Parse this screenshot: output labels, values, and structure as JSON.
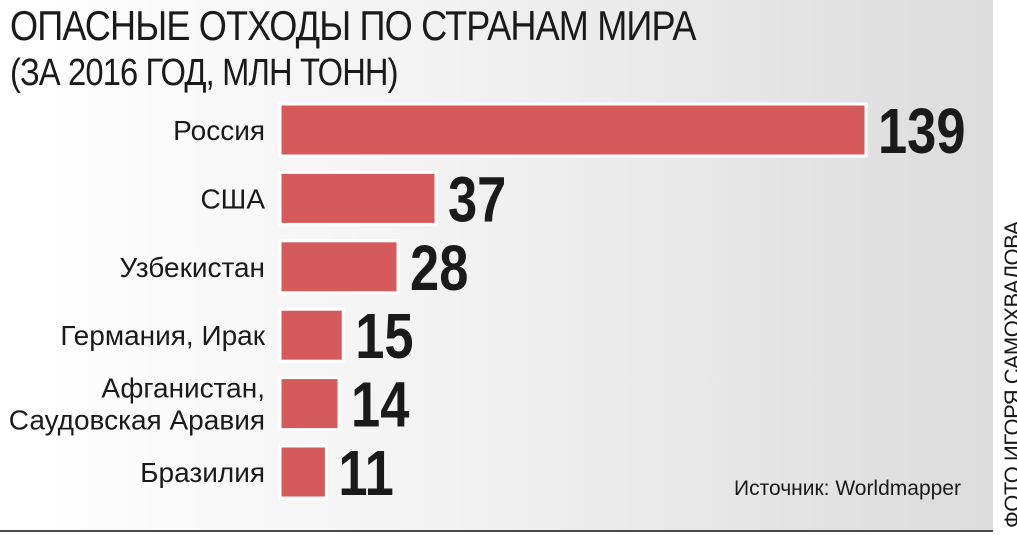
{
  "chart_data": {
    "type": "bar",
    "orientation": "horizontal",
    "title": "ОПАСНЫЕ ОТХОДЫ ПО СТРАНАМ МИРА",
    "subtitle": "(ЗА 2016 ГОД, МЛН ТОНН)",
    "categories": [
      [
        "Россия"
      ],
      [
        "США"
      ],
      [
        "Узбекистан"
      ],
      [
        "Германия, Ирак"
      ],
      [
        "Афганистан,",
        "Саудовская Аравия"
      ],
      [
        "Бразилия"
      ]
    ],
    "values": [
      139,
      37,
      28,
      15,
      14,
      11
    ],
    "bar_color": "#d45a5c",
    "xlim": [
      0,
      139
    ],
    "grid": false,
    "legend": "none"
  },
  "source": "Источник: Worldmapper",
  "credit": "ФОТО ИГОРЯ САМОХВАЛОВА"
}
